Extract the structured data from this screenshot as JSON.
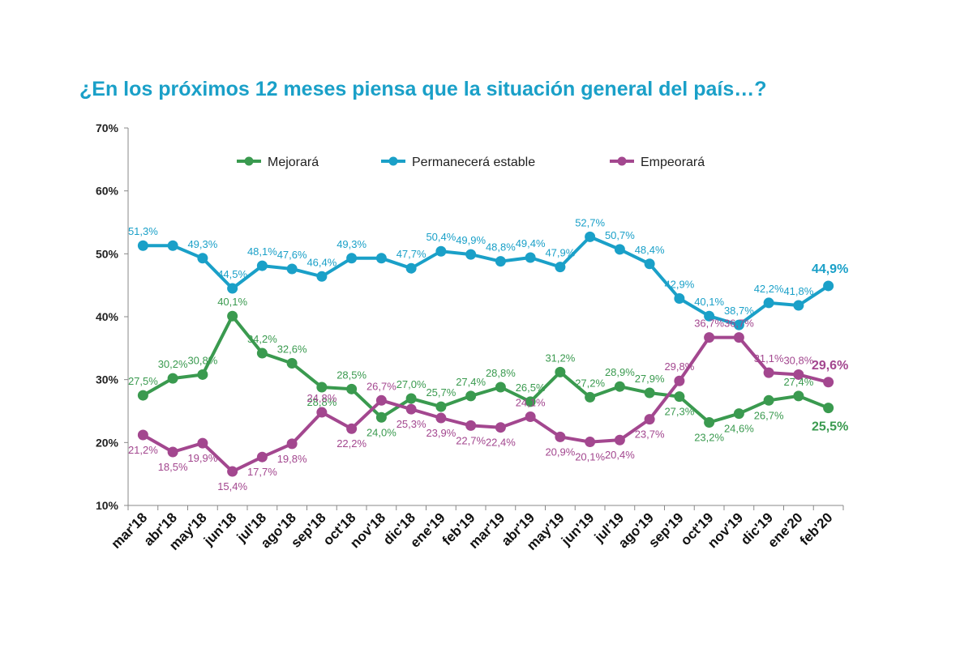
{
  "chart_data": {
    "type": "line",
    "title": "¿En los próximos 12 meses piensa que la situación general del país…?",
    "categories": [
      "mar'18",
      "abr'18",
      "may'18",
      "jun'18",
      "jul'18",
      "ago'18",
      "sep'18",
      "oct'18",
      "nov'18",
      "dic'18",
      "ene'19",
      "feb'19",
      "mar'19",
      "abr'19",
      "may'19",
      "jun'19",
      "jul'19",
      "ago'19",
      "sep'19",
      "oct'19",
      "nov'19",
      "dic'19",
      "ene'20",
      "feb'20"
    ],
    "ylim": [
      10,
      70
    ],
    "yticks": [
      10,
      20,
      30,
      40,
      50,
      60,
      70
    ],
    "ytick_labels": [
      "10%",
      "20%",
      "30%",
      "40%",
      "50%",
      "60%",
      "70%"
    ],
    "grid": false,
    "legend": "top-center",
    "series": [
      {
        "name": "Mejorará",
        "color": "#3a9a4f",
        "values": [
          27.5,
          30.2,
          30.8,
          40.1,
          34.2,
          32.6,
          28.8,
          28.5,
          24.0,
          27.0,
          25.7,
          27.4,
          28.8,
          26.5,
          31.2,
          27.2,
          28.9,
          27.9,
          27.3,
          23.2,
          24.6,
          26.7,
          27.4,
          25.5
        ],
        "labels": [
          "27,5%",
          "30,2%",
          "30,8%",
          "40,1%",
          "34,2%",
          "32,6%",
          "28,8%",
          "28,5%",
          "24,0%",
          "27,0%",
          "25,7%",
          "27,4%",
          "28,8%",
          "26,5%",
          "31,2%",
          "27,2%",
          "28,9%",
          "27,9%",
          "27,3%",
          "23,2%",
          "24,6%",
          "26,7%",
          "27,4%",
          "25,5%"
        ]
      },
      {
        "name": "Permanecerá estable",
        "color": "#1aa0c8",
        "values": [
          51.3,
          51.3,
          49.3,
          44.5,
          48.1,
          47.6,
          46.4,
          49.3,
          49.3,
          47.7,
          50.4,
          49.9,
          48.8,
          49.4,
          47.9,
          52.7,
          50.7,
          48.4,
          42.9,
          40.1,
          38.7,
          42.2,
          41.8,
          44.9
        ],
        "labels": [
          "51,3%",
          "",
          "49,3%",
          "44,5%",
          "48,1%",
          "47,6%",
          "46,4%",
          "49,3%",
          "",
          "47,7%",
          "50,4%",
          "49,9%",
          "48,8%",
          "49,4%",
          "47,9%",
          "52,7%",
          "50,7%",
          "48,4%",
          "42,9%",
          "40,1%",
          "38,7%",
          "42,2%",
          "41,8%",
          "44,9%"
        ]
      },
      {
        "name": "Empeorará",
        "color": "#a3478f",
        "values": [
          21.2,
          18.5,
          19.9,
          15.4,
          17.7,
          19.8,
          24.8,
          22.2,
          26.7,
          25.3,
          23.9,
          22.7,
          22.4,
          24.1,
          20.9,
          20.1,
          20.4,
          23.7,
          29.8,
          36.7,
          36.7,
          31.1,
          30.8,
          29.6
        ],
        "labels": [
          "21,2%",
          "18,5%",
          "19,9%",
          "15,4%",
          "17,7%",
          "19,8%",
          "24,8%",
          "22,2%",
          "26,7%",
          "25,3%",
          "23,9%",
          "22,7%",
          "22,4%",
          "24,1%",
          "20,9%",
          "20,1%",
          "20,4%",
          "23,7%",
          "29,8%",
          "36,7%",
          "36,7%",
          "31,1%",
          "30,8%",
          "29,6%"
        ]
      }
    ]
  }
}
